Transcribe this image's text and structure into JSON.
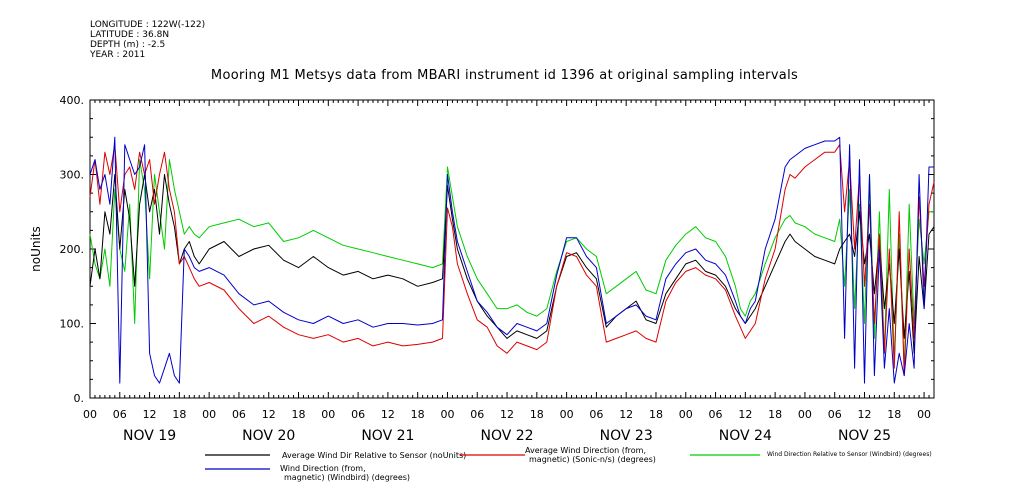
{
  "header": {
    "longitude": "LONGITUDE : 122W(-122)",
    "latitude": "LATITUDE : 36.8N",
    "depth": "DEPTH (m) : -2.5",
    "year": "YEAR : 2011"
  },
  "colors": {
    "black": "#000000",
    "red": "#dd0000",
    "green": "#00cc00",
    "blue": "#0000cc"
  },
  "chart_data": {
    "type": "line",
    "title": "Mooring M1 Metsys data from MBARI instrument id 1396 at original sampling intervals",
    "ylabel": "noUnits",
    "xlabel": "",
    "ylim": [
      0,
      400
    ],
    "y_ticks": [
      0,
      100,
      200,
      300,
      400
    ],
    "x_range_hours": [
      0,
      170
    ],
    "x_tick_labels": [
      "00",
      "06",
      "12",
      "18"
    ],
    "day_labels": [
      "NOV 19",
      "NOV 20",
      "NOV 21",
      "NOV 22",
      "NOV 23",
      "NOV 24",
      "NOV 25"
    ],
    "grid": false,
    "legend_position": "bottom",
    "x_note": "x values are hours after Nov 19 00:00",
    "series": [
      {
        "name": "Average Wind Dir Relative to Sensor (noUnits)",
        "color": "#000000",
        "x": [
          0,
          1,
          2,
          3,
          4,
          5,
          6,
          7,
          8,
          9,
          10,
          11,
          12,
          13,
          14,
          15,
          16,
          17,
          18,
          19,
          20,
          21,
          22,
          24,
          27,
          30,
          33,
          36,
          39,
          42,
          45,
          48,
          51,
          54,
          57,
          60,
          63,
          66,
          69,
          71,
          72,
          73,
          74,
          76,
          78,
          80,
          82,
          84,
          86,
          88,
          90,
          92,
          94,
          96,
          98,
          100,
          102,
          104,
          106,
          108,
          110,
          112,
          114,
          116,
          118,
          120,
          122,
          124,
          126,
          128,
          130,
          131,
          132,
          133,
          134,
          136,
          138,
          140,
          141,
          142,
          144,
          146,
          148,
          150,
          151,
          152,
          153,
          154,
          155,
          156,
          157,
          158,
          159,
          160,
          161,
          162,
          163,
          164,
          165,
          166,
          167,
          168,
          169,
          170
        ],
        "y": [
          150,
          200,
          160,
          250,
          220,
          300,
          200,
          280,
          240,
          150,
          260,
          300,
          250,
          280,
          220,
          300,
          260,
          230,
          180,
          200,
          210,
          190,
          180,
          200,
          210,
          190,
          200,
          205,
          185,
          175,
          190,
          175,
          165,
          170,
          160,
          165,
          160,
          150,
          155,
          160,
          285,
          240,
          200,
          160,
          130,
          110,
          95,
          80,
          90,
          85,
          80,
          90,
          150,
          190,
          195,
          175,
          160,
          95,
          110,
          120,
          130,
          105,
          100,
          140,
          160,
          180,
          185,
          170,
          165,
          150,
          120,
          110,
          100,
          110,
          120,
          150,
          180,
          210,
          220,
          210,
          200,
          190,
          185,
          180,
          200,
          210,
          220,
          190,
          250,
          180,
          220,
          140,
          210,
          120,
          180,
          100,
          200,
          80,
          170,
          60,
          190,
          120,
          220,
          230
        ]
      },
      {
        "name": "Average Wind Direction (from, magnetic) (Sonic-n/s) (degrees)",
        "color": "#dd0000",
        "x": [
          0,
          1,
          2,
          3,
          4,
          5,
          6,
          7,
          8,
          9,
          10,
          11,
          12,
          13,
          14,
          15,
          16,
          17,
          18,
          19,
          20,
          21,
          22,
          24,
          27,
          30,
          33,
          36,
          39,
          42,
          45,
          48,
          51,
          54,
          57,
          60,
          63,
          66,
          69,
          71,
          72,
          73,
          74,
          76,
          78,
          80,
          82,
          84,
          86,
          88,
          90,
          92,
          94,
          96,
          98,
          100,
          102,
          104,
          106,
          108,
          110,
          112,
          114,
          116,
          118,
          120,
          122,
          124,
          126,
          128,
          130,
          131,
          132,
          133,
          134,
          136,
          138,
          140,
          141,
          142,
          144,
          146,
          148,
          150,
          151,
          152,
          153,
          154,
          155,
          156,
          157,
          158,
          159,
          160,
          161,
          162,
          163,
          164,
          165,
          166,
          167,
          168,
          169,
          170
        ],
        "y": [
          270,
          320,
          260,
          330,
          300,
          340,
          250,
          300,
          310,
          280,
          330,
          300,
          320,
          260,
          300,
          330,
          280,
          250,
          180,
          190,
          175,
          160,
          150,
          155,
          145,
          120,
          100,
          110,
          95,
          85,
          80,
          85,
          75,
          80,
          70,
          75,
          70,
          72,
          75,
          80,
          255,
          230,
          180,
          140,
          105,
          95,
          70,
          60,
          75,
          70,
          65,
          75,
          150,
          195,
          190,
          165,
          150,
          75,
          80,
          85,
          90,
          80,
          75,
          130,
          155,
          170,
          175,
          165,
          160,
          145,
          110,
          95,
          80,
          90,
          100,
          160,
          200,
          280,
          300,
          295,
          310,
          320,
          330,
          330,
          340,
          250,
          320,
          200,
          300,
          150,
          260,
          100,
          220,
          60,
          200,
          40,
          250,
          30,
          200,
          80,
          270,
          150,
          260,
          290
        ]
      },
      {
        "name": "Wind Direction Relative to Sensor (Windbird) (degrees)",
        "color": "#00cc00",
        "x": [
          0,
          1,
          2,
          3,
          4,
          5,
          6,
          7,
          8,
          9,
          10,
          11,
          12,
          13,
          14,
          15,
          16,
          17,
          18,
          19,
          20,
          21,
          22,
          24,
          27,
          30,
          33,
          36,
          39,
          42,
          45,
          48,
          51,
          54,
          57,
          60,
          63,
          66,
          69,
          71,
          72,
          73,
          74,
          76,
          78,
          80,
          82,
          84,
          86,
          88,
          90,
          92,
          94,
          96,
          98,
          100,
          102,
          104,
          106,
          108,
          110,
          112,
          114,
          116,
          118,
          120,
          122,
          124,
          126,
          128,
          130,
          131,
          132,
          133,
          134,
          136,
          138,
          140,
          141,
          142,
          144,
          146,
          148,
          150,
          151,
          152,
          153,
          154,
          155,
          156,
          157,
          158,
          159,
          160,
          161,
          162,
          163,
          164,
          165,
          166,
          167,
          168,
          169,
          170
        ],
        "y": [
          220,
          180,
          160,
          200,
          150,
          280,
          200,
          170,
          260,
          100,
          320,
          280,
          160,
          300,
          250,
          200,
          320,
          280,
          250,
          220,
          230,
          220,
          215,
          230,
          235,
          240,
          230,
          235,
          210,
          215,
          225,
          215,
          205,
          200,
          195,
          190,
          185,
          180,
          175,
          180,
          310,
          270,
          230,
          190,
          160,
          140,
          120,
          120,
          125,
          115,
          110,
          120,
          170,
          210,
          215,
          200,
          190,
          140,
          150,
          160,
          170,
          145,
          140,
          185,
          205,
          220,
          230,
          215,
          210,
          190,
          150,
          120,
          110,
          130,
          140,
          180,
          215,
          240,
          245,
          235,
          230,
          220,
          215,
          210,
          240,
          150,
          280,
          120,
          260,
          100,
          300,
          80,
          250,
          60,
          280,
          50,
          220,
          40,
          260,
          100,
          240,
          180,
          250,
          250
        ]
      },
      {
        "name": "Wind Direction (from, magnetic) (Windbird) (degrees)",
        "color": "#0000cc",
        "x": [
          0,
          1,
          2,
          3,
          4,
          5,
          6,
          7,
          8,
          9,
          10,
          11,
          12,
          13,
          14,
          15,
          16,
          17,
          18,
          19,
          20,
          21,
          22,
          24,
          27,
          30,
          33,
          36,
          39,
          42,
          45,
          48,
          51,
          54,
          57,
          60,
          63,
          66,
          69,
          71,
          72,
          73,
          74,
          76,
          78,
          80,
          82,
          84,
          86,
          88,
          90,
          92,
          94,
          96,
          98,
          100,
          102,
          104,
          106,
          108,
          110,
          112,
          114,
          116,
          118,
          120,
          122,
          124,
          126,
          128,
          130,
          131,
          132,
          133,
          134,
          136,
          138,
          140,
          141,
          142,
          144,
          146,
          148,
          150,
          151,
          152,
          153,
          154,
          155,
          156,
          157,
          158,
          159,
          160,
          161,
          162,
          163,
          164,
          165,
          166,
          167,
          168,
          169,
          170
        ],
        "y": [
          300,
          320,
          280,
          300,
          260,
          350,
          20,
          340,
          320,
          300,
          310,
          340,
          60,
          30,
          20,
          40,
          60,
          30,
          20,
          200,
          190,
          175,
          170,
          175,
          165,
          140,
          125,
          130,
          115,
          105,
          100,
          110,
          100,
          105,
          95,
          100,
          100,
          98,
          100,
          105,
          300,
          250,
          210,
          170,
          130,
          115,
          95,
          85,
          100,
          95,
          90,
          100,
          165,
          215,
          215,
          190,
          175,
          100,
          110,
          120,
          125,
          110,
          105,
          160,
          180,
          195,
          200,
          185,
          180,
          165,
          130,
          110,
          100,
          120,
          130,
          200,
          240,
          310,
          320,
          325,
          335,
          340,
          345,
          345,
          350,
          80,
          340,
          40,
          320,
          20,
          300,
          30,
          200,
          40,
          120,
          20,
          60,
          30,
          100,
          40,
          300,
          120,
          310,
          310
        ]
      }
    ],
    "legend": [
      {
        "label": "Average Wind Dir Relative to Sensor (noUnits)",
        "color": "#000000"
      },
      {
        "label": "Average Wind Direction (from, magnetic) (Sonic-n/s) (degrees)",
        "color": "#dd0000"
      },
      {
        "label": "Wind Direction Relative to Sensor (Windbird) (degrees)",
        "color": "#00cc00"
      },
      {
        "label": "Wind Direction (from, magnetic) (Windbird) (degrees)",
        "color": "#0000cc"
      }
    ]
  }
}
